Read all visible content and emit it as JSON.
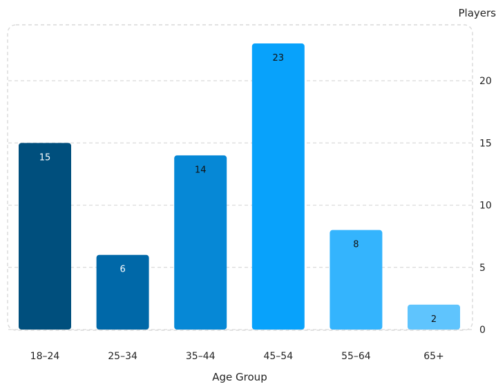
{
  "chart_data": {
    "type": "bar",
    "categories": [
      "18–24",
      "25–34",
      "35–44",
      "45–54",
      "55–64",
      "65+"
    ],
    "values": [
      15,
      6,
      14,
      23,
      8,
      2
    ],
    "title": "",
    "xlabel": "Age Group",
    "ylabel": "Players",
    "ylim": [
      0,
      23.5
    ],
    "yticks": [
      0,
      5,
      10,
      15,
      20
    ],
    "y_axis_side": "right",
    "grid": true,
    "data_labels": true,
    "bar_colors": [
      "#004f7d",
      "#0068a8",
      "#0688d6",
      "#08a2fb",
      "#34b4fd",
      "#5fc4fd"
    ],
    "label_colors": [
      "#ffffff",
      "#ffffff",
      "#111111",
      "#111111",
      "#111111",
      "#111111"
    ]
  }
}
